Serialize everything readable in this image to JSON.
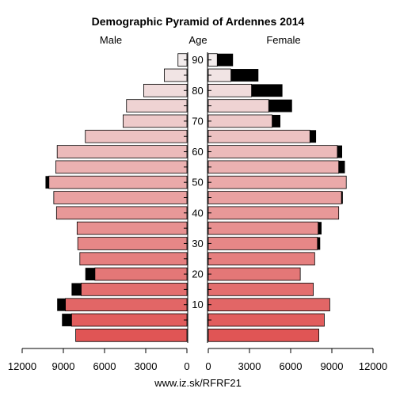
{
  "chart_data": {
    "type": "bar",
    "title": "Demographic Pyramid of Ardennes 2014",
    "left_label": "Male",
    "center_label": "Age",
    "right_label": "Female",
    "footer": "www.iz.sk/RFRF21",
    "age_ticks": [
      "10",
      "20",
      "30",
      "40",
      "50",
      "60",
      "70",
      "80",
      "90"
    ],
    "x_ticks_left": [
      "12000",
      "9000",
      "6000",
      "3000",
      "0"
    ],
    "x_ticks_right": [
      "0",
      "3000",
      "6000",
      "9000",
      "12000"
    ],
    "xlim": [
      0,
      12000
    ],
    "age_groups": [
      "0-4",
      "5-9",
      "10-14",
      "15-19",
      "20-24",
      "25-29",
      "30-34",
      "35-39",
      "40-44",
      "45-49",
      "50-54",
      "55-59",
      "60-64",
      "65-69",
      "70-74",
      "75-79",
      "80-84",
      "85-89",
      "90+"
    ],
    "series": [
      {
        "name": "Male",
        "values": [
          8100,
          8400,
          8850,
          7700,
          6700,
          7800,
          7950,
          8000,
          9500,
          9700,
          10050,
          9550,
          9450,
          7400,
          4650,
          4400,
          3150,
          1650,
          650
        ],
        "excess": [
          0,
          700,
          600,
          700,
          700,
          0,
          0,
          0,
          0,
          0,
          250,
          0,
          0,
          0,
          0,
          0,
          0,
          0,
          0
        ]
      },
      {
        "name": "Female",
        "values": [
          8050,
          8450,
          8850,
          7650,
          6700,
          7750,
          7950,
          8000,
          9500,
          9700,
          10050,
          9500,
          9400,
          7400,
          4650,
          4400,
          3150,
          1650,
          650
        ],
        "excess": [
          0,
          0,
          0,
          0,
          0,
          0,
          200,
          250,
          0,
          100,
          0,
          450,
          350,
          450,
          600,
          1700,
          2250,
          2000,
          1150
        ]
      }
    ],
    "colors": {
      "young": "#e05555",
      "old": "#f2ecec",
      "excess": "#000000",
      "outline": "#000000"
    }
  }
}
